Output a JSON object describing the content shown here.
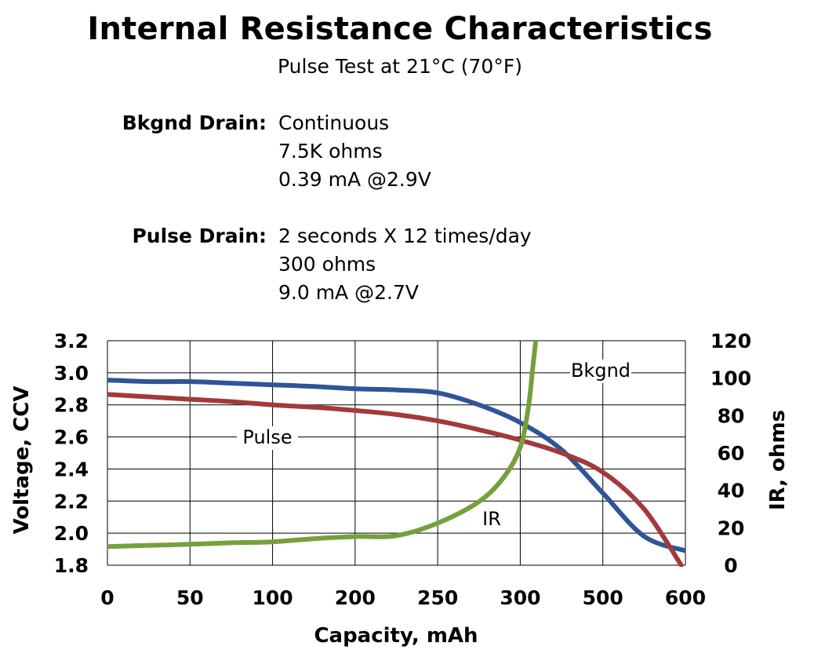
{
  "header": {
    "title": "Internal Resistance Characteristics",
    "subtitle": "Pulse Test at 21°C (70°F)"
  },
  "specs": {
    "bkgnd": {
      "label": "Bkgnd Drain:",
      "lines": [
        "Continuous",
        "7.5K ohms",
        "0.39 mA @2.9V"
      ]
    },
    "pulse": {
      "label": "Pulse Drain:",
      "lines": [
        "2 seconds X 12 times/day",
        "300 ohms",
        "9.0 mA @2.7V"
      ]
    }
  },
  "chart_data": {
    "type": "line",
    "xlabel": "Capacity, mAh",
    "ylabel": "Voltage, CCV",
    "y2label": "IR, ohms",
    "x_tick_labels": [
      "0",
      "50",
      "100",
      "200",
      "250",
      "300",
      "500",
      "600"
    ],
    "y_ticks": [
      "3.2",
      "3.0",
      "2.8",
      "2.6",
      "2.4",
      "2.2",
      "2.0",
      "1.8"
    ],
    "y2_ticks": [
      "120",
      "100",
      "80",
      "60",
      "40",
      "20",
      "0"
    ],
    "ylim": [
      1.8,
      3.2
    ],
    "y2lim": [
      0,
      120
    ],
    "grid": true,
    "series": [
      {
        "name": "Bkgnd",
        "axis": "left",
        "color": "#2f5597",
        "points": [
          [
            0,
            2.955
          ],
          [
            0.5,
            2.945
          ],
          [
            1,
            2.945
          ],
          [
            1.5,
            2.935
          ],
          [
            2,
            2.925
          ],
          [
            2.5,
            2.915
          ],
          [
            3,
            2.9
          ],
          [
            3.5,
            2.893
          ],
          [
            4,
            2.875
          ],
          [
            4.5,
            2.8
          ],
          [
            5,
            2.69
          ],
          [
            5.5,
            2.52
          ],
          [
            6,
            2.25
          ],
          [
            6.5,
            1.98
          ],
          [
            7,
            1.89
          ]
        ]
      },
      {
        "name": "Pulse",
        "axis": "left",
        "color": "#a33a3a",
        "points": [
          [
            0,
            2.865
          ],
          [
            0.5,
            2.85
          ],
          [
            1,
            2.835
          ],
          [
            1.5,
            2.82
          ],
          [
            2,
            2.8
          ],
          [
            2.5,
            2.785
          ],
          [
            3,
            2.765
          ],
          [
            3.5,
            2.74
          ],
          [
            4,
            2.7
          ],
          [
            4.5,
            2.645
          ],
          [
            5,
            2.58
          ],
          [
            5.5,
            2.5
          ],
          [
            6,
            2.38
          ],
          [
            6.5,
            2.15
          ],
          [
            6.95,
            1.8
          ]
        ]
      },
      {
        "name": "IR",
        "axis": "right",
        "color": "#76a03c",
        "points": [
          [
            0,
            10.0
          ],
          [
            0.5,
            10.6
          ],
          [
            1,
            11.2
          ],
          [
            1.5,
            12.0
          ],
          [
            2,
            12.5
          ],
          [
            2.5,
            14.2
          ],
          [
            3,
            15.3
          ],
          [
            3.5,
            15.8
          ],
          [
            4,
            22.5
          ],
          [
            4.5,
            34.0
          ],
          [
            4.8,
            47.0
          ],
          [
            5,
            63.0
          ],
          [
            5.1,
            85.0
          ],
          [
            5.15,
            105.0
          ],
          [
            5.2,
            125.0
          ]
        ]
      }
    ],
    "annotations": [
      {
        "label": "Bkgnd",
        "series": "Bkgnd"
      },
      {
        "label": "Pulse",
        "series": "Pulse"
      },
      {
        "label": "IR",
        "series": "IR"
      }
    ]
  }
}
